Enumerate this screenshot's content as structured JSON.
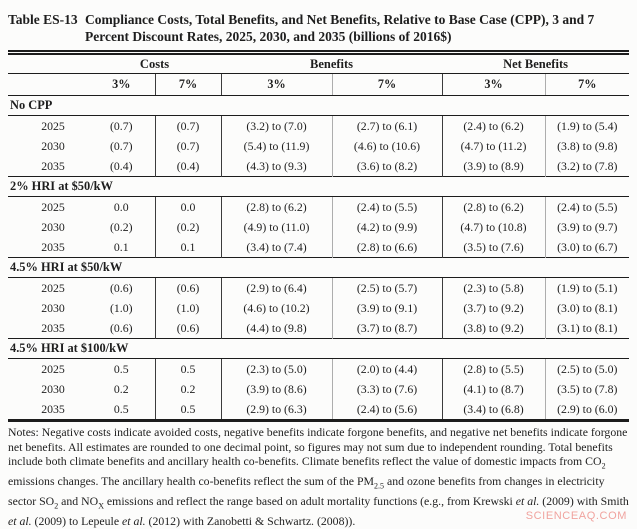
{
  "title": {
    "label": "Table ES-13",
    "caption": "Compliance Costs, Total Benefits, and Net Benefits, Relative to Base Case (CPP), 3 and 7 Percent Discount Rates, 2025, 2030, and 2035 (billions of 2016$)"
  },
  "table": {
    "col_groups": [
      "Costs",
      "Benefits",
      "Net Benefits"
    ],
    "sub_headers": [
      "3%",
      "7%",
      "3%",
      "7%",
      "3%",
      "7%"
    ],
    "sections": [
      {
        "label": "No CPP",
        "rows": [
          {
            "year": "2025",
            "values": [
              "(0.7)",
              "(0.7)",
              "(3.2) to (7.0)",
              "(2.7) to (6.1)",
              "(2.4) to (6.2)",
              "(1.9) to (5.4)"
            ]
          },
          {
            "year": "2030",
            "values": [
              "(0.7)",
              "(0.7)",
              "(5.4) to (11.9)",
              "(4.6) to (10.6)",
              "(4.7) to (11.2)",
              "(3.8) to (9.8)"
            ]
          },
          {
            "year": "2035",
            "values": [
              "(0.4)",
              "(0.4)",
              "(4.3) to (9.3)",
              "(3.6) to (8.2)",
              "(3.9) to (8.9)",
              "(3.2) to (7.8)"
            ]
          }
        ]
      },
      {
        "label": "2% HRI at $50/kW",
        "rows": [
          {
            "year": "2025",
            "values": [
              "0.0",
              "0.0",
              "(2.8) to (6.2)",
              "(2.4) to (5.5)",
              "(2.8) to (6.2)",
              "(2.4) to (5.5)"
            ]
          },
          {
            "year": "2030",
            "values": [
              "(0.2)",
              "(0.2)",
              "(4.9) to (11.0)",
              "(4.2) to (9.9)",
              "(4.7) to (10.8)",
              "(3.9) to (9.7)"
            ]
          },
          {
            "year": "2035",
            "values": [
              "0.1",
              "0.1",
              "(3.4) to (7.4)",
              "(2.8) to (6.6)",
              "(3.5) to (7.6)",
              "(3.0) to (6.7)"
            ]
          }
        ]
      },
      {
        "label": "4.5% HRI at $50/kW",
        "rows": [
          {
            "year": "2025",
            "values": [
              "(0.6)",
              "(0.6)",
              "(2.9) to (6.4)",
              "(2.5) to (5.7)",
              "(2.3) to (5.8)",
              "(1.9) to (5.1)"
            ]
          },
          {
            "year": "2030",
            "values": [
              "(1.0)",
              "(1.0)",
              "(4.6) to (10.2)",
              "(3.9) to (9.1)",
              "(3.7) to (9.2)",
              "(3.0) to (8.1)"
            ]
          },
          {
            "year": "2035",
            "values": [
              "(0.6)",
              "(0.6)",
              "(4.4) to (9.8)",
              "(3.7) to (8.7)",
              "(3.8) to (9.2)",
              "(3.1) to (8.1)"
            ]
          }
        ]
      },
      {
        "label": "4.5% HRI at $100/kW",
        "rows": [
          {
            "year": "2025",
            "values": [
              "0.5",
              "0.5",
              "(2.3) to (5.0)",
              "(2.0) to (4.4)",
              "(2.8) to (5.5)",
              "(2.5) to (5.0)"
            ]
          },
          {
            "year": "2030",
            "values": [
              "0.2",
              "0.2",
              "(3.9) to (8.6)",
              "(3.3) to (7.6)",
              "(4.1) to (8.7)",
              "(3.5) to (7.8)"
            ]
          },
          {
            "year": "2035",
            "values": [
              "0.5",
              "0.5",
              "(2.9) to (6.3)",
              "(2.4) to (5.6)",
              "(3.4) to (6.8)",
              "(2.9) to (6.0)"
            ]
          }
        ]
      }
    ]
  },
  "notes_segments": [
    {
      "text": "Notes: Negative costs indicate avoided costs, negative benefits indicate forgone benefits, and negative net benefits indicate forgone net benefits. All estimates are rounded to one decimal point, so figures may not sum due to independent rounding. Total benefits include both climate benefits and ancillary health co-benefits. Climate benefits reflect the value of domestic impacts from CO",
      "style": "plain"
    },
    {
      "text": "2",
      "style": "sub"
    },
    {
      "text": " emissions changes. The ancillary health co-benefits reflect the sum of the PM",
      "style": "plain"
    },
    {
      "text": "2.5",
      "style": "sub"
    },
    {
      "text": " and ozone benefits from changes in electricity sector SO",
      "style": "plain"
    },
    {
      "text": "2",
      "style": "sub"
    },
    {
      "text": " and NO",
      "style": "plain"
    },
    {
      "text": "X",
      "style": "sub"
    },
    {
      "text": " emissions and reflect the range based on adult mortality functions (e.g., from Krewski ",
      "style": "plain"
    },
    {
      "text": "et al.",
      "style": "italic"
    },
    {
      "text": " (2009) with Smith ",
      "style": "plain"
    },
    {
      "text": "et al.",
      "style": "italic"
    },
    {
      "text": " (2009) to Lepeule ",
      "style": "plain"
    },
    {
      "text": "et al.",
      "style": "italic"
    },
    {
      "text": " (2012) with Zanobetti & Schwartz. (2008)).",
      "style": "plain"
    }
  ],
  "watermark": "SCIENCEAQ.COM"
}
